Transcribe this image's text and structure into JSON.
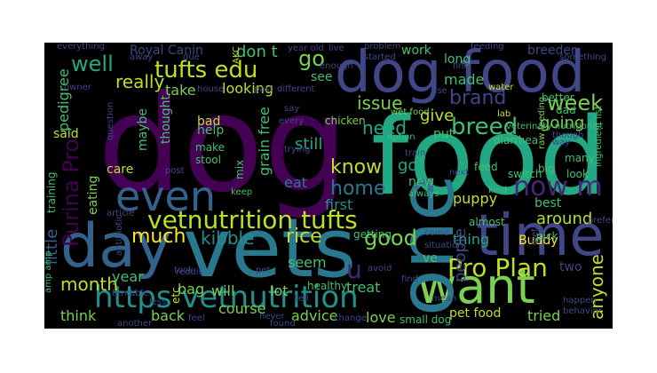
{
  "palette": {
    "background": "#000000",
    "dark_purple": "#440154",
    "purple": "#482677",
    "indigo": "#404688",
    "blue": "#33638d",
    "steel_blue": "#2a788e",
    "teal": "#21908d",
    "sea_green": "#22a884",
    "green": "#44bf70",
    "light_green": "#7ad151",
    "yellow_green": "#bddf26",
    "yellow": "#fde725"
  },
  "words": [
    "dog",
    "food",
    "dog food",
    "vets",
    "day",
    "want",
    "one",
    "time",
    "even",
    "https vetnutrition",
    "vetnutrition tufts",
    "tufts edu",
    "now m",
    "Pro Plan",
    "Purina Pro",
    "breed",
    "week",
    "brand",
    "issue",
    "need",
    "know",
    "home",
    "good",
    "go",
    "well",
    "really",
    "kibble",
    "rice",
    "much",
    "month",
    "take",
    "looking",
    "don t",
    "Royal Canin",
    "made",
    "give",
    "going",
    "still",
    "got",
    "anyone",
    "puppy",
    "around",
    "eat",
    "first",
    "thing",
    "little",
    "pedigree",
    "people",
    "u",
    "will",
    "lot",
    "bag",
    "back",
    "course",
    "advice",
    "love",
    "tried",
    "pet food",
    "think",
    "said",
    "care",
    "eating",
    "thought",
    "maybe",
    "help",
    "grain free",
    "new",
    "best",
    "seem",
    "treat",
    "year",
    "see",
    "long",
    "work",
    "breeder",
    "diarrhea",
    "dad",
    "put",
    "ve",
    "two",
    "Buddy",
    "bad",
    "make",
    "stool",
    "mix",
    "etc",
    "getting",
    "training",
    "amp amp",
    "almost",
    "pick",
    "small dog",
    "healthy",
    "chicken",
    "wet food",
    "feed",
    "raw feeding",
    "switch",
    "big",
    "look",
    "many",
    "kind",
    "keep",
    "always",
    "better",
    "water",
    "lab",
    "veterinary nutritionist",
    "option",
    "ingredient list",
    "something",
    "feeding",
    "problem",
    "started",
    "live",
    "year old",
    "everything",
    "owner",
    "house",
    "past",
    "different",
    "enough",
    "say",
    "every",
    "trying",
    "question",
    "article",
    "antibiotic",
    "reddit",
    "pet",
    "took",
    "tell",
    "able",
    "tend",
    "less",
    "another",
    "feel",
    "never",
    "found",
    "change",
    "mean",
    "happen",
    "behavior",
    "prefer",
    "find",
    "avoid",
    "due",
    "away",
    "fine",
    "use",
    "way",
    "AKC",
    "train",
    "next",
    "post",
    "come",
    "situation",
    "diet",
    "though"
  ]
}
